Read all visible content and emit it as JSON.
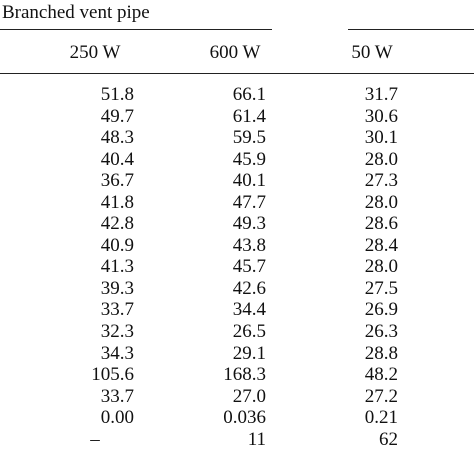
{
  "table": {
    "group_title": "Branched vent pipe",
    "columns": [
      "250 W",
      "600 W",
      "50 W"
    ],
    "rows": [
      [
        "51.8",
        "66.1",
        "31.7"
      ],
      [
        "49.7",
        "61.4",
        "30.6"
      ],
      [
        "48.3",
        "59.5",
        "30.1"
      ],
      [
        "40.4",
        "45.9",
        "28.0"
      ],
      [
        "36.7",
        "40.1",
        "27.3"
      ],
      [
        "41.8",
        "47.7",
        "28.0"
      ],
      [
        "42.8",
        "49.3",
        "28.6"
      ],
      [
        "40.9",
        "43.8",
        "28.4"
      ],
      [
        "41.3",
        "45.7",
        "28.0"
      ],
      [
        "39.3",
        "42.6",
        "27.5"
      ],
      [
        "33.7",
        "34.4",
        "26.9"
      ],
      [
        "32.3",
        "26.5",
        "26.3"
      ],
      [
        "34.3",
        "29.1",
        "28.8"
      ],
      [
        "105.6",
        "168.3",
        "48.2"
      ],
      [
        "33.7",
        "27.0",
        "27.2"
      ],
      [
        "0.00",
        "0.036",
        "0.21"
      ],
      [
        "–",
        "11",
        "62"
      ]
    ]
  }
}
